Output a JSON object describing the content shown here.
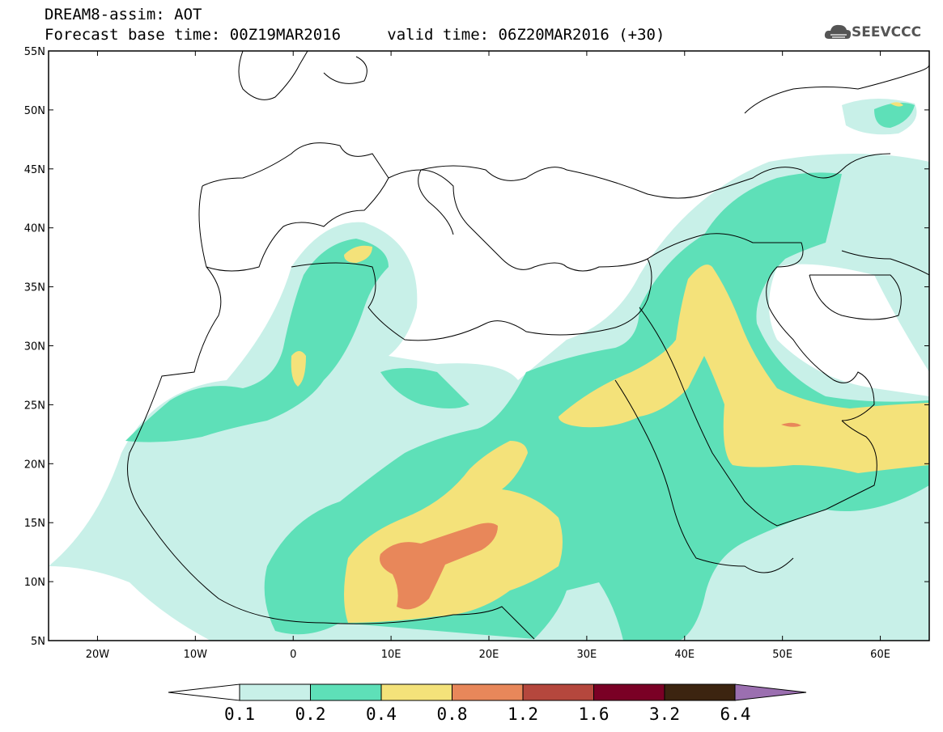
{
  "header": {
    "title": "DREAM8-assim: AOT",
    "base_time_label": "Forecast base time: 00Z19MAR2016",
    "valid_time_label": "valid time: 06Z20MAR2016 (+30)"
  },
  "logo": {
    "text": "SEEVCCC",
    "icon": "cloud-icon"
  },
  "map": {
    "lon_range": [
      -25,
      65
    ],
    "lat_range": [
      5,
      55
    ],
    "lat_ticks": [
      "5N",
      "10N",
      "15N",
      "20N",
      "25N",
      "30N",
      "35N",
      "40N",
      "45N",
      "50N",
      "55N"
    ],
    "lon_ticks": [
      "20W",
      "10W",
      "0",
      "10E",
      "20E",
      "30E",
      "40E",
      "50E",
      "60E"
    ]
  },
  "colorbar": {
    "labels": [
      "0.1",
      "0.2",
      "0.4",
      "0.8",
      "1.2",
      "1.6",
      "3.2",
      "6.4"
    ],
    "colors": [
      "#ffffff",
      "#c8f0e8",
      "#5ee0b8",
      "#f4e27a",
      "#e8875a",
      "#b5473d",
      "#7a0025",
      "#3c2410",
      "#9b6fb0"
    ]
  },
  "fill_colors": {
    "level1": "#c8f0e8",
    "level2": "#5ee0b8",
    "level3": "#f4e27a",
    "level4": "#e8875a"
  }
}
